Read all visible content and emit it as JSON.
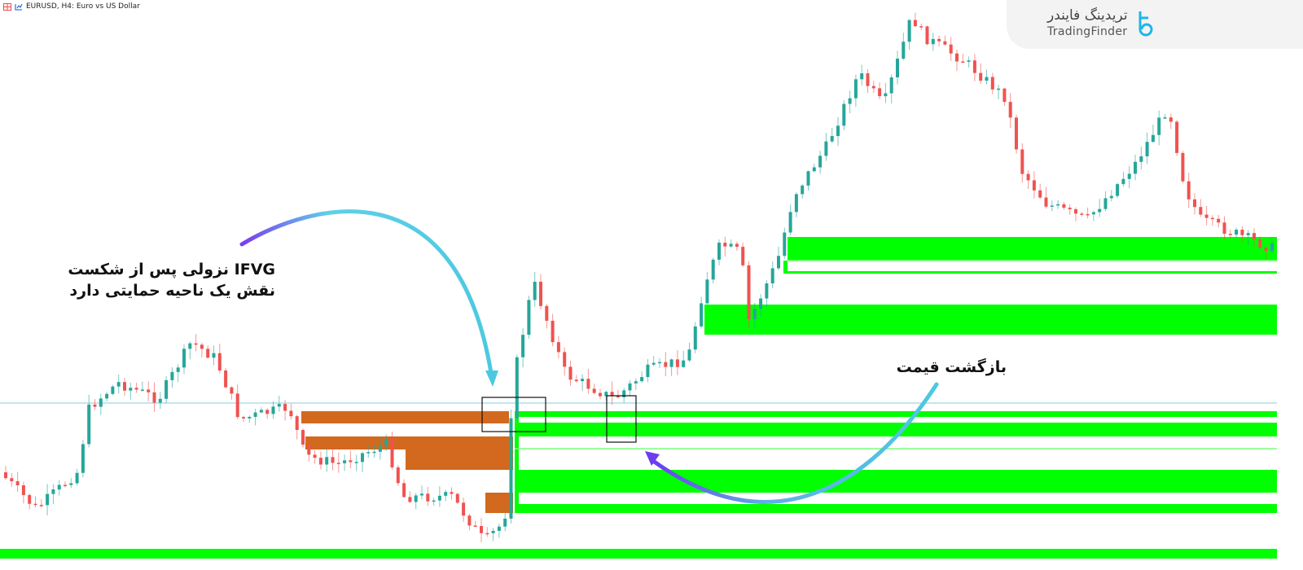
{
  "window": {
    "title": "EURUSD, H4:  Euro vs US Dollar",
    "icons": [
      "chart-grid-icon",
      "indicator-icon"
    ]
  },
  "logo": {
    "name_fa": "تریدینگ فایندر",
    "name_en": "TradingFinder",
    "accent": "#1fb6e8"
  },
  "annotations": {
    "ifvg_line1": "IFVG نزولی پس از شکست",
    "ifvg_line2": "نقش یک ناحیه حمایتی دارد",
    "pullback": "بازگشت قیمت"
  },
  "chart_data": {
    "type": "candlestick",
    "symbol": "EURUSD",
    "timeframe": "H4",
    "grid": false,
    "colors": {
      "bull": "#26a69a",
      "bear": "#ef5350",
      "bullish_zone": "#00ff00",
      "bearish_zone": "#d2691e",
      "level_line": "#9fd8e8"
    },
    "zones": [
      {
        "kind": "bearish-fvg"
      },
      {
        "kind": "bearish-fvg"
      },
      {
        "kind": "bearish-fvg"
      },
      {
        "kind": "bearish-fvg"
      },
      {
        "kind": "ifvg-support"
      },
      {
        "kind": "ifvg-support"
      },
      {
        "kind": "ifvg-support"
      },
      {
        "kind": "ifvg-support"
      },
      {
        "kind": "bullish-fvg"
      },
      {
        "kind": "bullish-fvg"
      },
      {
        "kind": "bullish-fvg"
      }
    ]
  }
}
